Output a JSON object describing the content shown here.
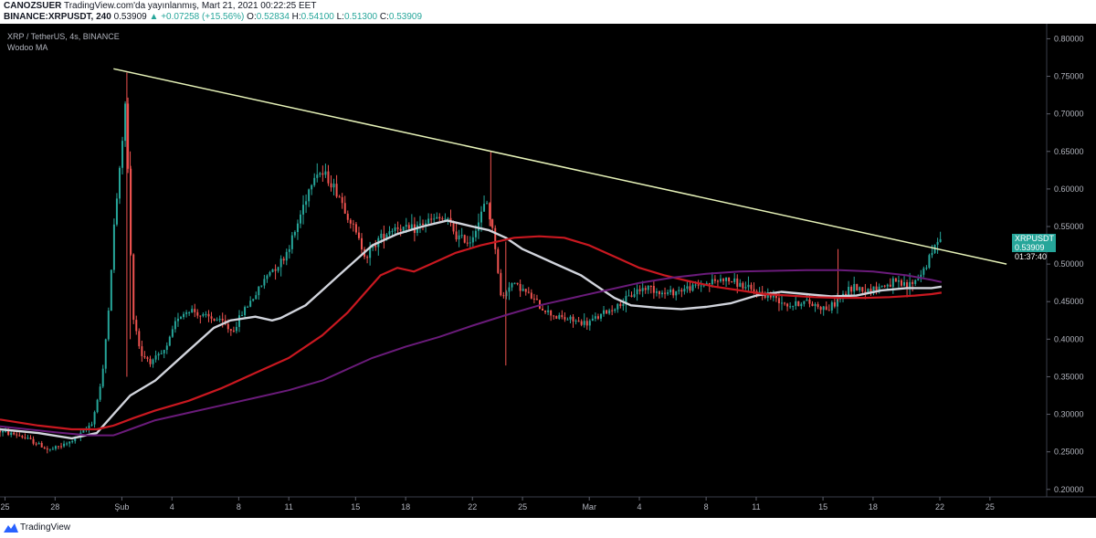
{
  "header": {
    "line1_user": "CANOZSUER",
    "line1_rest": "TradingView.com'da yayınlanmış, Mart 21, 2021 00:22:25 EET",
    "symbol": "BINANCE:XRPUSDT, 240",
    "last": "0.53909",
    "change": "▲ +0.07258 (+15.56%)",
    "o_label": "O:",
    "o_value": "0.52834",
    "h_label": "H:",
    "h_value": "0.54100",
    "l_label": "L:",
    "l_value": "0.51300",
    "c_label": "C:",
    "c_value": "0.53909"
  },
  "legend": {
    "pair": "XRP / TetherUS, 4s, BINANCE",
    "indicator": "Wodoo MA"
  },
  "price_tag": {
    "symbol": "XRPUSDT",
    "price": "0.53909",
    "countdown": "01:37:40"
  },
  "footer": {
    "brand": "TradingView"
  },
  "colors": {
    "up": "#26a69a",
    "down": "#ef5350",
    "ma_fast": "#d1d4dc",
    "ma_mid": "#c91820",
    "ma_slow": "#6a1b7a",
    "trendline": "#e6f2b8",
    "price_tag": "#26a69a"
  },
  "chart_data": {
    "type": "candlestick",
    "ylim": [
      0.19,
      0.82
    ],
    "y_ticks": [
      "0.20000",
      "0.25000",
      "0.30000",
      "0.35000",
      "0.40000",
      "0.45000",
      "0.50000",
      "0.55000",
      "0.60000",
      "0.65000",
      "0.70000",
      "0.75000",
      "0.80000"
    ],
    "x_ticks": [
      {
        "label": "25",
        "day": -7
      },
      {
        "label": "28",
        "day": -4
      },
      {
        "label": "Şub",
        "day": 0
      },
      {
        "label": "4",
        "day": 3
      },
      {
        "label": "8",
        "day": 7
      },
      {
        "label": "11",
        "day": 10
      },
      {
        "label": "15",
        "day": 14
      },
      {
        "label": "18",
        "day": 17
      },
      {
        "label": "22",
        "day": 21
      },
      {
        "label": "25",
        "day": 24
      },
      {
        "label": "Mar",
        "day": 28
      },
      {
        "label": "4",
        "day": 31
      },
      {
        "label": "8",
        "day": 35
      },
      {
        "label": "11",
        "day": 38
      },
      {
        "label": "15",
        "day": 42
      },
      {
        "label": "18",
        "day": 45
      },
      {
        "label": "22",
        "day": 49
      },
      {
        "label": "25",
        "day": 52
      }
    ],
    "xlim_days": [
      -7.3,
      55.4
    ],
    "price_path": [
      [
        -7.3,
        0.278
      ],
      [
        -6,
        0.272
      ],
      [
        -5,
        0.262
      ],
      [
        -4.2,
        0.252
      ],
      [
        -3,
        0.262
      ],
      [
        -2.2,
        0.275
      ],
      [
        -1.6,
        0.29
      ],
      [
        -1,
        0.35
      ],
      [
        -0.6,
        0.45
      ],
      [
        -0.3,
        0.55
      ],
      [
        0.1,
        0.64
      ],
      [
        0.4,
        0.72
      ],
      [
        0.6,
        0.58
      ],
      [
        0.8,
        0.44
      ],
      [
        1.3,
        0.38
      ],
      [
        2,
        0.37
      ],
      [
        2.8,
        0.385
      ],
      [
        3.5,
        0.43
      ],
      [
        4.3,
        0.44
      ],
      [
        5,
        0.43
      ],
      [
        6,
        0.425
      ],
      [
        6.8,
        0.41
      ],
      [
        7.5,
        0.44
      ],
      [
        8.2,
        0.46
      ],
      [
        9,
        0.49
      ],
      [
        9.8,
        0.505
      ],
      [
        10.5,
        0.54
      ],
      [
        11.2,
        0.59
      ],
      [
        11.8,
        0.625
      ],
      [
        12.5,
        0.615
      ],
      [
        13.2,
        0.59
      ],
      [
        14,
        0.55
      ],
      [
        14.8,
        0.51
      ],
      [
        15.6,
        0.535
      ],
      [
        16.5,
        0.55
      ],
      [
        17.5,
        0.545
      ],
      [
        18.3,
        0.555
      ],
      [
        19,
        0.56
      ],
      [
        19.6,
        0.56
      ],
      [
        20.3,
        0.535
      ],
      [
        21,
        0.53
      ],
      [
        21.6,
        0.56
      ],
      [
        22,
        0.585
      ],
      [
        22.5,
        0.53
      ],
      [
        22.9,
        0.45
      ],
      [
        23.4,
        0.475
      ],
      [
        24,
        0.47
      ],
      [
        24.7,
        0.455
      ],
      [
        25.4,
        0.44
      ],
      [
        26.2,
        0.43
      ],
      [
        27.2,
        0.425
      ],
      [
        28,
        0.42
      ],
      [
        28.7,
        0.43
      ],
      [
        29.5,
        0.44
      ],
      [
        30.3,
        0.45
      ],
      [
        31,
        0.465
      ],
      [
        31.8,
        0.47
      ],
      [
        32.6,
        0.46
      ],
      [
        33.5,
        0.465
      ],
      [
        34.5,
        0.47
      ],
      [
        35.3,
        0.475
      ],
      [
        36.2,
        0.48
      ],
      [
        37,
        0.475
      ],
      [
        37.8,
        0.465
      ],
      [
        38.6,
        0.46
      ],
      [
        39.4,
        0.455
      ],
      [
        40.2,
        0.445
      ],
      [
        41,
        0.45
      ],
      [
        41.8,
        0.445
      ],
      [
        42.5,
        0.44
      ],
      [
        43.2,
        0.455
      ],
      [
        44,
        0.47
      ],
      [
        44.8,
        0.465
      ],
      [
        45.6,
        0.47
      ],
      [
        46.4,
        0.475
      ],
      [
        47.2,
        0.47
      ],
      [
        47.8,
        0.48
      ],
      [
        48.4,
        0.5
      ],
      [
        48.9,
        0.525
      ],
      [
        49.1,
        0.539
      ]
    ],
    "spikes": [
      {
        "day": 0.3,
        "high": 0.755,
        "low": 0.35
      },
      {
        "day": 0.5,
        "high": 0.65,
        "low": 0.4
      },
      {
        "day": 22.1,
        "high": 0.65,
        "low": 0.55
      },
      {
        "day": 23.0,
        "high": 0.53,
        "low": 0.365
      },
      {
        "day": 42.9,
        "high": 0.52,
        "low": 0.45
      }
    ],
    "series": [
      {
        "role": "ma_fast",
        "points": [
          [
            -7.3,
            0.28
          ],
          [
            -5,
            0.275
          ],
          [
            -3,
            0.268
          ],
          [
            -1.5,
            0.275
          ],
          [
            -0.3,
            0.305
          ],
          [
            0.5,
            0.325
          ],
          [
            2,
            0.345
          ],
          [
            4,
            0.385
          ],
          [
            5.5,
            0.415
          ],
          [
            6.5,
            0.425
          ],
          [
            8,
            0.43
          ],
          [
            9,
            0.425
          ],
          [
            9.5,
            0.428
          ],
          [
            11,
            0.445
          ],
          [
            12,
            0.465
          ],
          [
            13,
            0.485
          ],
          [
            14,
            0.505
          ],
          [
            15,
            0.525
          ],
          [
            16.5,
            0.54
          ],
          [
            18,
            0.55
          ],
          [
            19.5,
            0.558
          ],
          [
            21,
            0.55
          ],
          [
            22,
            0.545
          ],
          [
            23,
            0.535
          ],
          [
            24,
            0.52
          ],
          [
            25,
            0.51
          ],
          [
            26,
            0.5
          ],
          [
            27.5,
            0.485
          ],
          [
            28.5,
            0.47
          ],
          [
            29.5,
            0.455
          ],
          [
            30.5,
            0.445
          ],
          [
            32,
            0.442
          ],
          [
            33.5,
            0.44
          ],
          [
            35,
            0.443
          ],
          [
            36.5,
            0.448
          ],
          [
            38,
            0.458
          ],
          [
            39.5,
            0.463
          ],
          [
            41,
            0.46
          ],
          [
            42.5,
            0.457
          ],
          [
            44,
            0.458
          ],
          [
            45.5,
            0.465
          ],
          [
            47,
            0.468
          ],
          [
            48.5,
            0.468
          ],
          [
            49.1,
            0.47
          ]
        ]
      },
      {
        "role": "ma_mid",
        "points": [
          [
            -7.3,
            0.293
          ],
          [
            -5,
            0.285
          ],
          [
            -3,
            0.28
          ],
          [
            -1.5,
            0.28
          ],
          [
            -0.5,
            0.285
          ],
          [
            0.7,
            0.295
          ],
          [
            2,
            0.305
          ],
          [
            4,
            0.318
          ],
          [
            6,
            0.335
          ],
          [
            8,
            0.355
          ],
          [
            10,
            0.375
          ],
          [
            12,
            0.405
          ],
          [
            13.5,
            0.435
          ],
          [
            14.5,
            0.46
          ],
          [
            15.5,
            0.485
          ],
          [
            16.5,
            0.495
          ],
          [
            17.5,
            0.49
          ],
          [
            18.5,
            0.5
          ],
          [
            20,
            0.515
          ],
          [
            21.5,
            0.525
          ],
          [
            22.5,
            0.53
          ],
          [
            23.5,
            0.535
          ],
          [
            25,
            0.537
          ],
          [
            26.5,
            0.535
          ],
          [
            28,
            0.525
          ],
          [
            29.5,
            0.51
          ],
          [
            31,
            0.495
          ],
          [
            32.5,
            0.485
          ],
          [
            34,
            0.477
          ],
          [
            35.5,
            0.47
          ],
          [
            37,
            0.465
          ],
          [
            38.5,
            0.46
          ],
          [
            40,
            0.458
          ],
          [
            41.5,
            0.456
          ],
          [
            43,
            0.455
          ],
          [
            44.5,
            0.455
          ],
          [
            46,
            0.456
          ],
          [
            47.5,
            0.458
          ],
          [
            48.5,
            0.46
          ],
          [
            49.1,
            0.462
          ]
        ]
      },
      {
        "role": "ma_slow",
        "points": [
          [
            -7.3,
            0.284
          ],
          [
            -4,
            0.276
          ],
          [
            -2,
            0.272
          ],
          [
            -0.5,
            0.272
          ],
          [
            0.5,
            0.28
          ],
          [
            2,
            0.292
          ],
          [
            4,
            0.302
          ],
          [
            6,
            0.312
          ],
          [
            8,
            0.322
          ],
          [
            10,
            0.332
          ],
          [
            12,
            0.345
          ],
          [
            13.5,
            0.36
          ],
          [
            15,
            0.375
          ],
          [
            17,
            0.39
          ],
          [
            19,
            0.403
          ],
          [
            21,
            0.418
          ],
          [
            23,
            0.432
          ],
          [
            25,
            0.445
          ],
          [
            27,
            0.455
          ],
          [
            29,
            0.465
          ],
          [
            31,
            0.475
          ],
          [
            33,
            0.482
          ],
          [
            35,
            0.487
          ],
          [
            37,
            0.49
          ],
          [
            39,
            0.491
          ],
          [
            41,
            0.492
          ],
          [
            43,
            0.492
          ],
          [
            45,
            0.49
          ],
          [
            47,
            0.485
          ],
          [
            48.5,
            0.479
          ],
          [
            49.1,
            0.476
          ]
        ]
      },
      {
        "role": "trendline",
        "points": [
          [
            -0.5,
            0.76
          ],
          [
            53,
            0.5
          ]
        ]
      }
    ]
  }
}
